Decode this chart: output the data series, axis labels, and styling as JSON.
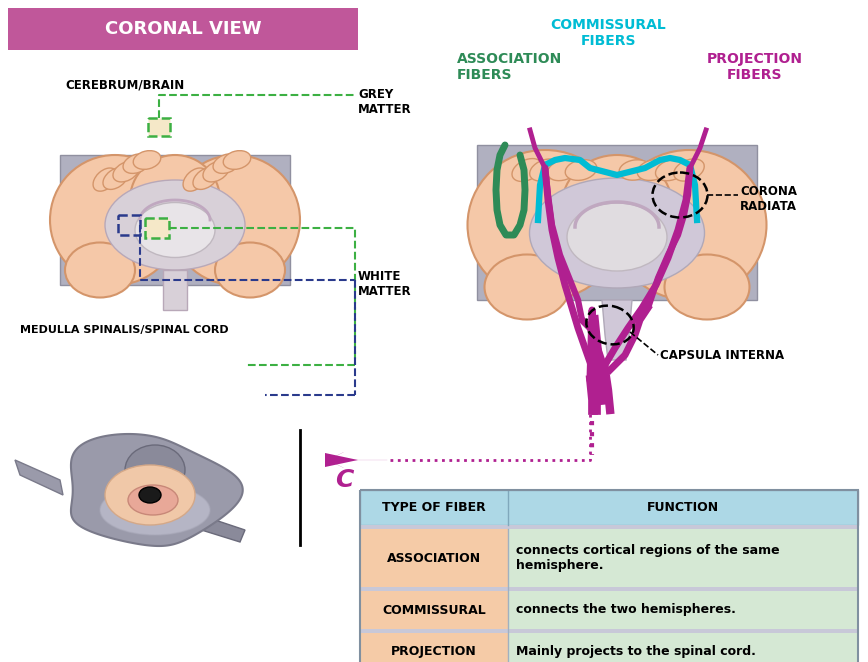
{
  "coronal_view_label": "CORONAL VIEW",
  "coronal_view_bg": "#c0579a",
  "cerebrum_label": "CEREBRUM/BRAIN",
  "medulla_label": "MEDULLA SPINALIS/SPINAL CORD",
  "grey_matter_label": "GREY\nMATTER",
  "white_matter_label": "WHITE\nMATTER",
  "association_fibers_label": "ASSOCIATION\nFIBERS",
  "commissural_fibers_label": "COMMISSURAL\nFIBERS",
  "projection_fibers_label": "PROJECTION\nFIBERS",
  "corona_radiata_label": "CORONA\nRADIATA",
  "capsula_interna_label": "CAPSULA INTERNA",
  "c_label": "C",
  "table_header_bg": "#add8e6",
  "table_row_left_bg": "#f5cba7",
  "table_row_right_bg": "#d5e8d4",
  "table_col1_header": "TYPE OF FIBER",
  "table_col2_header": "FUNCTION",
  "table_row1_col1": "ASSOCIATION",
  "table_row1_col2": "connects cortical regions of the same\nhemisphere.",
  "table_row2_col1": "COMMISSURAL",
  "table_row2_col2": "connects the two hemispheres.",
  "table_row3_col1": "PROJECTION",
  "table_row3_col2": "Mainly projects to the spinal cord.",
  "association_color": "#2e8b57",
  "commissural_color": "#00bcd4",
  "projection_color": "#b02090",
  "dashed_green": "#3cb043",
  "dashed_blue": "#2a3a8c",
  "arrow_color": "#b02090",
  "brain_fill": "#f5c8a8",
  "brain_inner": "#e8e0e8",
  "brain_outline": "#d4956a",
  "bg_color": "#ffffff",
  "grey_bg": "#b8b8c8"
}
